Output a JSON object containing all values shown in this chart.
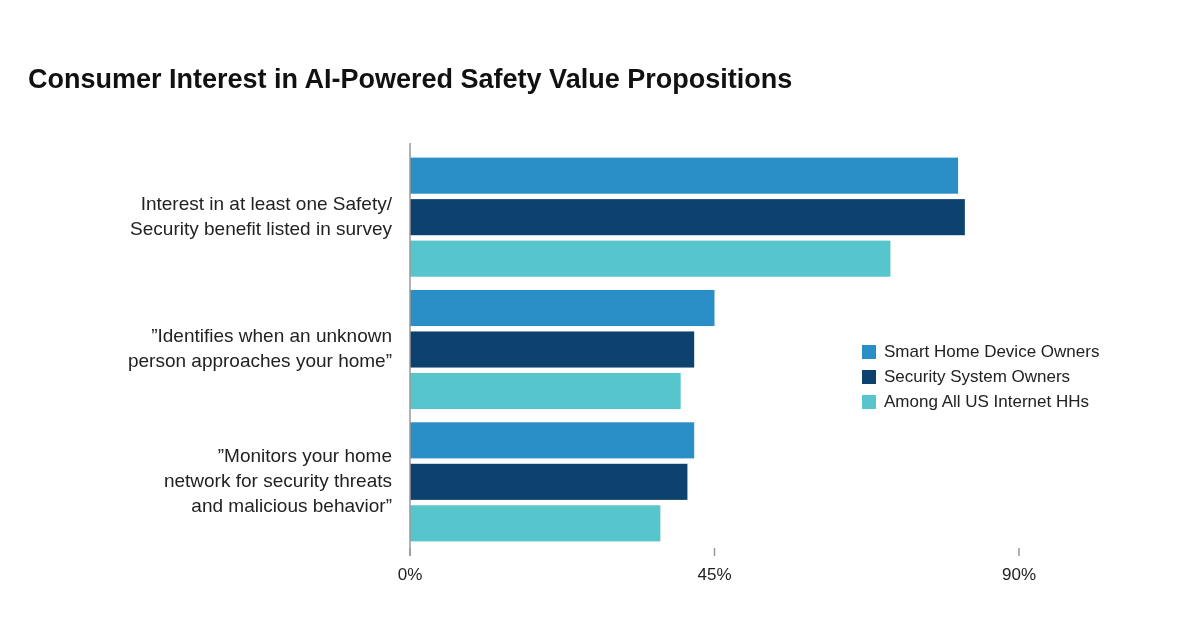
{
  "chart_data": {
    "type": "bar",
    "orientation": "horizontal",
    "title": "Consumer Interest in AI-Powered Safety Value Propositions",
    "categories": [
      "Interest in at least one Safety/\nSecurity benefit listed in survey",
      "”Identifies when an unknown\nperson approaches your home”",
      "”Monitors your home\nnetwork for security threats\nand malicious behavior”"
    ],
    "series": [
      {
        "name": "Smart Home Device Owners",
        "color": "#2a8fc7",
        "values": [
          81,
          45,
          42
        ]
      },
      {
        "name": "Security System Owners",
        "color": "#0e426e",
        "values": [
          82,
          42,
          41
        ]
      },
      {
        "name": "Among All US Internet HHs",
        "color": "#56c5cc",
        "values": [
          71,
          40,
          37
        ]
      }
    ],
    "xlim": [
      0,
      90
    ],
    "xticks": [
      {
        "value": 0,
        "label": "0%"
      },
      {
        "value": 45,
        "label": "45%"
      },
      {
        "value": 90,
        "label": "90%"
      }
    ],
    "legend": "right",
    "grid": false
  }
}
